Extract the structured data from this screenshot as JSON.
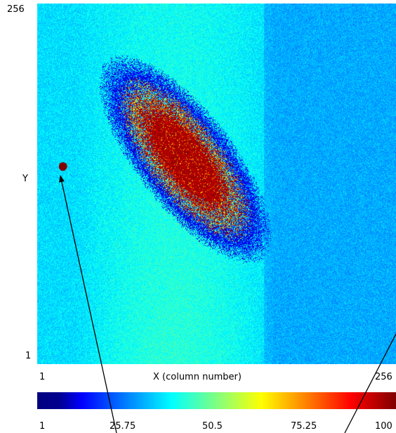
{
  "chart_data": {
    "type": "heatmap",
    "xlabel": "X (column number)",
    "ylabel": "Y",
    "x_ticks": [
      "1",
      "256"
    ],
    "y_ticks": [
      "256",
      "1"
    ],
    "xlim": [
      1,
      256
    ],
    "ylim": [
      1,
      256
    ],
    "colorbar": {
      "min": 1,
      "max": 100,
      "tick_labels": [
        "1",
        "25.75",
        "50.5",
        "75.25",
        "100"
      ],
      "colormap": "jet"
    },
    "background_regions": [
      {
        "x_range": [
          1,
          161
        ],
        "value": 35
      },
      {
        "x_range": [
          162,
          256
        ],
        "value": 30
      }
    ],
    "bright_band": {
      "x_range": [
        28,
        170
      ],
      "value": 42
    },
    "features": [
      {
        "name": "elliptical-blob",
        "center": [
          106,
          146
        ],
        "semi_major": 78,
        "semi_minor": 30,
        "angle_deg": 52,
        "peak_value": 100,
        "edge_value": 8
      },
      {
        "name": "hot-spot",
        "center": [
          19,
          141
        ],
        "radius": 3,
        "value": 100
      }
    ],
    "annotations": [
      {
        "type": "arrow",
        "from": "colorbar-25.75",
        "to": "hot-spot"
      },
      {
        "type": "arrow",
        "from": "colorbar-75.25-100",
        "to": "right-edge"
      }
    ],
    "colors": {
      "low": "#00007f",
      "mid": "#00ffff",
      "high": "#800000"
    }
  }
}
